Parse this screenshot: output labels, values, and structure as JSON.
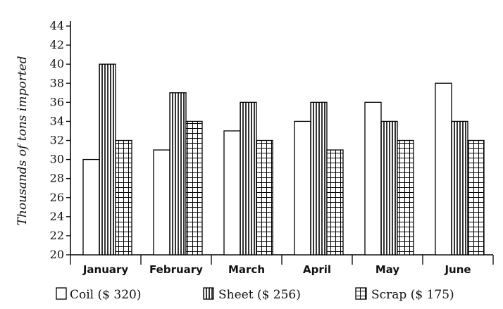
{
  "chart_data": {
    "type": "bar",
    "categories": [
      "January",
      "February",
      "March",
      "April",
      "May",
      "June"
    ],
    "series": [
      {
        "name": "Coil ($ 320)",
        "values": [
          30,
          31,
          33,
          34,
          36,
          38
        ]
      },
      {
        "name": "Sheet ($ 256)",
        "values": [
          40,
          37,
          36,
          36,
          34,
          34
        ]
      },
      {
        "name": "Scrap ($ 175)",
        "values": [
          32,
          34,
          32,
          31,
          32,
          32
        ]
      }
    ],
    "title": "",
    "xlabel": "",
    "ylabel": "Thousands of tons imported",
    "ylim": [
      20,
      44
    ],
    "yticks": [
      20,
      22,
      24,
      26,
      28,
      30,
      32,
      34,
      36,
      38,
      40,
      42,
      44
    ],
    "legend_position": "bottom",
    "grid": false
  }
}
